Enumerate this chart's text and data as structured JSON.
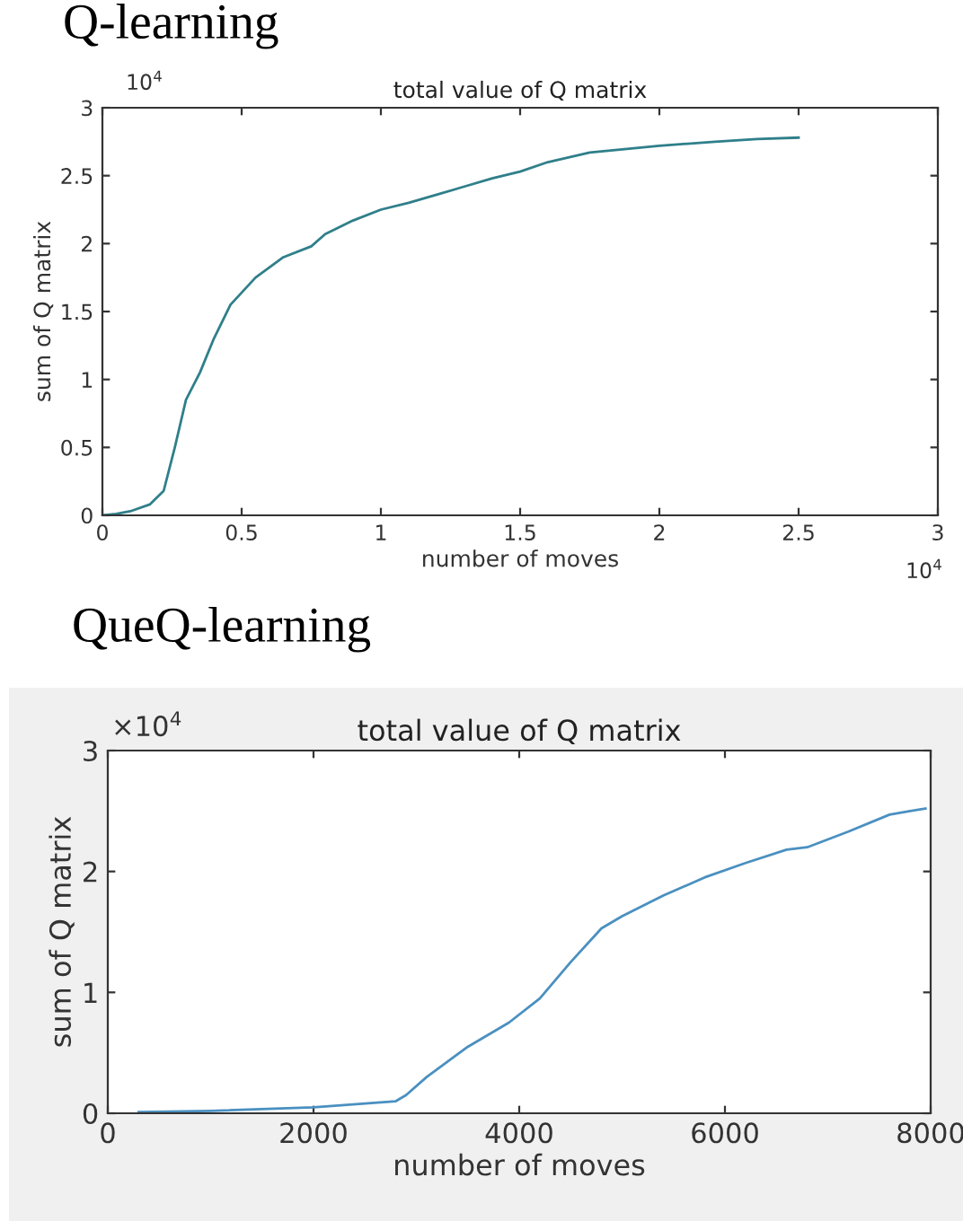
{
  "chart_data": [
    {
      "type": "line",
      "title": "Q-learning",
      "subtitle": "total value of Q matrix",
      "xlabel": "number of moves",
      "ylabel": "sum of Q matrix",
      "annotations": [
        "10$^{4}$",
        "10$^{4}$"
      ],
      "x": [
        0,
        0.05,
        0.1,
        0.17,
        0.22,
        0.26,
        0.3,
        0.35,
        0.4,
        0.46,
        0.55,
        0.65,
        0.75,
        0.8,
        0.9,
        1.0,
        1.1,
        1.2,
        1.3,
        1.4,
        1.5,
        1.6,
        1.75,
        2.0,
        2.2,
        2.35,
        2.5
      ],
      "series": [
        {
          "color": "#2f7f8a",
          "values": [
            0,
            0.01,
            0.03,
            0.08,
            0.18,
            0.5,
            0.85,
            1.05,
            1.3,
            1.55,
            1.75,
            1.9,
            1.98,
            2.07,
            2.17,
            2.25,
            2.3,
            2.36,
            2.42,
            2.48,
            2.53,
            2.6,
            2.67,
            2.72,
            2.75,
            2.77,
            2.78
          ]
        }
      ],
      "xlim": [
        0,
        3
      ],
      "xticks": [
        0,
        0.5,
        1,
        1.5,
        2,
        2.5,
        3
      ],
      "ylim": [
        0,
        3
      ],
      "yticks": [
        0,
        0.5,
        1,
        1.5,
        2,
        2.5,
        3
      ],
      "grid": false,
      "legend": false
    },
    {
      "type": "line",
      "title": "QueQ-learning",
      "subtitle": "total value of Q matrix",
      "xlabel": "number of moves",
      "ylabel": "sum of Q matrix",
      "annotations": [
        "×10$^{4}$"
      ],
      "x": [
        300,
        1000,
        2000,
        2800,
        2900,
        3100,
        3500,
        3900,
        4200,
        4500,
        4800,
        5000,
        5400,
        5800,
        6200,
        6600,
        6800,
        7200,
        7600,
        7800,
        7950
      ],
      "series": [
        {
          "color": "#4a90c0",
          "values": [
            0.01,
            0.02,
            0.05,
            0.1,
            0.15,
            0.3,
            0.55,
            0.75,
            0.95,
            1.25,
            1.53,
            1.63,
            1.8,
            1.95,
            2.07,
            2.18,
            2.2,
            2.33,
            2.47,
            2.5,
            2.52
          ]
        }
      ],
      "xlim": [
        0,
        8000
      ],
      "xticks": [
        0,
        2000,
        4000,
        6000,
        8000
      ],
      "ylim": [
        0,
        3
      ],
      "yticks": [
        0,
        1,
        2,
        3
      ],
      "grid": false,
      "legend": false
    }
  ]
}
